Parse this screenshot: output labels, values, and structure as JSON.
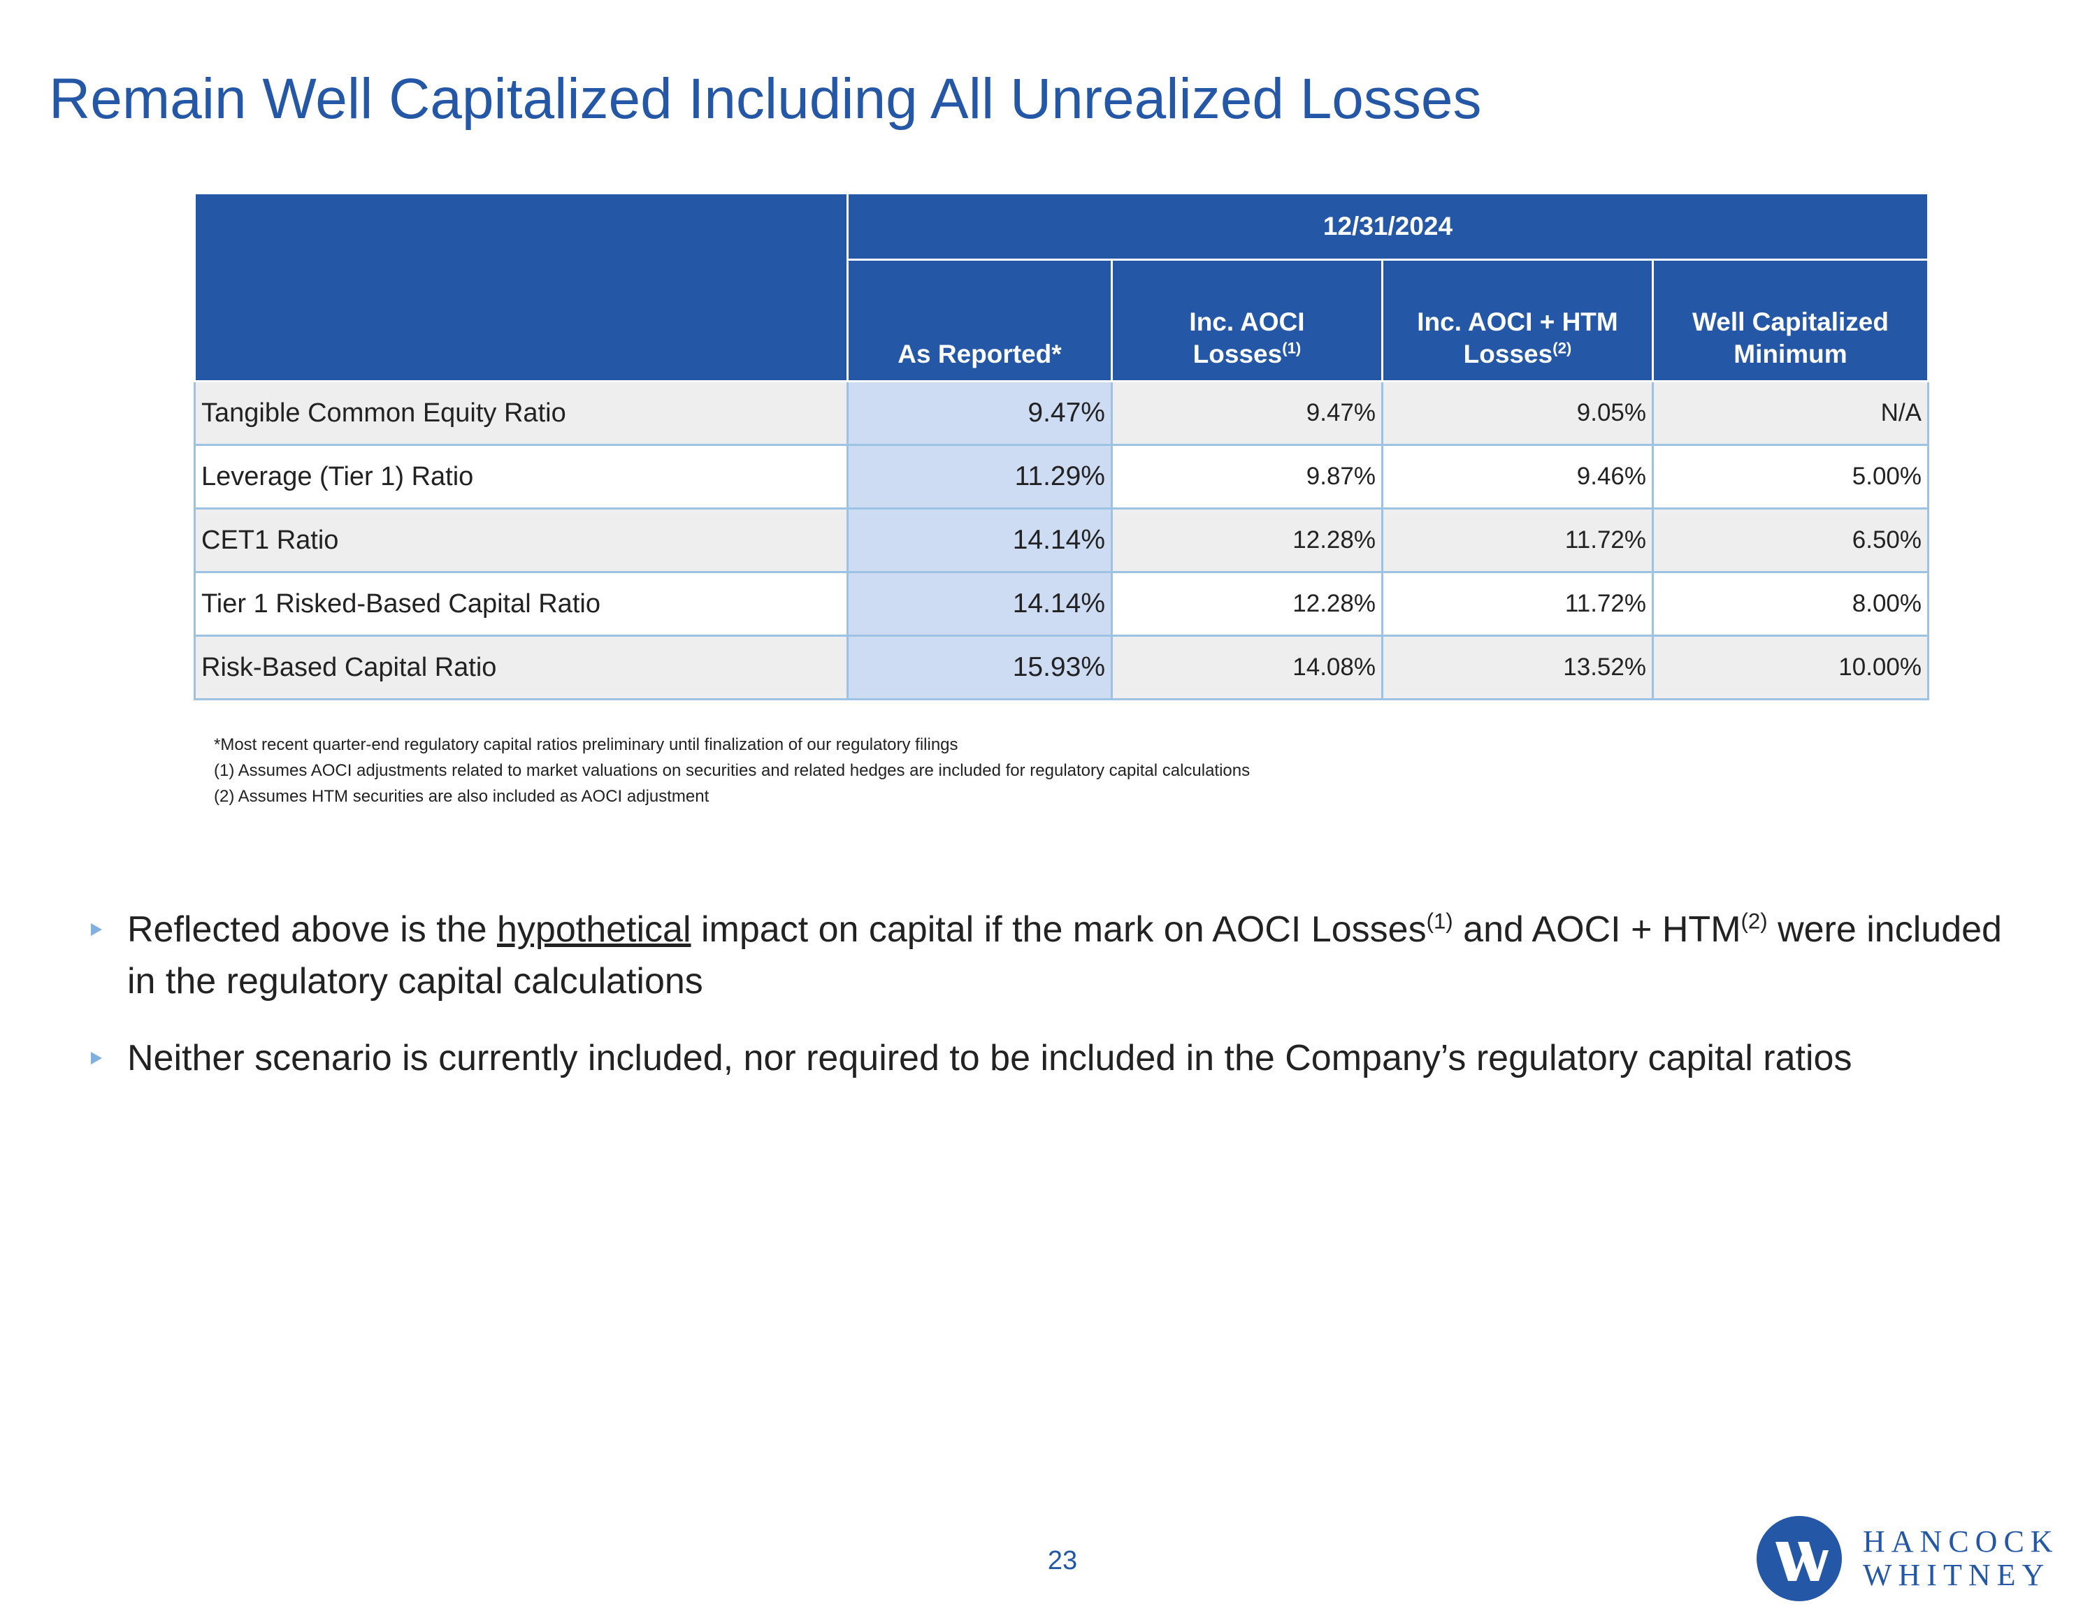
{
  "title": "Remain Well Capitalized Including All Unrealized Losses",
  "table": {
    "period": "12/31/2024",
    "columns": [
      {
        "lines": [
          "As Reported*"
        ]
      },
      {
        "lines": [
          "Inc. AOCI",
          "Losses"
        ],
        "sup": "(1)"
      },
      {
        "lines": [
          "Inc. AOCI + HTM",
          "Losses"
        ],
        "sup": "(2)"
      },
      {
        "lines": [
          "Well Capitalized",
          "Minimum"
        ]
      }
    ],
    "rows": [
      {
        "label": "Tangible Common Equity Ratio",
        "values": [
          "9.47%",
          "9.47%",
          "9.05%",
          "N/A"
        ]
      },
      {
        "label": "Leverage (Tier 1) Ratio",
        "values": [
          "11.29%",
          "9.87%",
          "9.46%",
          "5.00%"
        ]
      },
      {
        "label": "CET1 Ratio",
        "values": [
          "14.14%",
          "12.28%",
          "11.72%",
          "6.50%"
        ]
      },
      {
        "label": "Tier 1 Risked-Based Capital Ratio",
        "values": [
          "14.14%",
          "12.28%",
          "11.72%",
          "8.00%"
        ]
      },
      {
        "label": "Risk-Based Capital Ratio",
        "values": [
          "15.93%",
          "14.08%",
          "13.52%",
          "10.00%"
        ]
      }
    ]
  },
  "footnotes": [
    "*Most recent quarter-end regulatory capital ratios preliminary until finalization of our regulatory filings",
    "(1)  Assumes AOCI adjustments related to market valuations on securities and related hedges are included for regulatory capital calculations",
    "(2)  Assumes HTM securities are also included as AOCI adjustment"
  ],
  "bullets": [
    [
      "Reflected above is the ",
      {
        "underline": "hypothetical"
      },
      " impact on capital if the mark on AOCI Losses",
      {
        "sup": "(1)"
      },
      " and AOCI + HTM",
      {
        "sup": "(2)"
      },
      " were included in the regulatory capital calculations"
    ],
    [
      "Neither scenario is currently included, nor required to be included in the Company’s regulatory capital ratios"
    ]
  ],
  "page_number": "23",
  "logo": {
    "line1": "HANCOCK",
    "line2": "WHITNEY"
  }
}
